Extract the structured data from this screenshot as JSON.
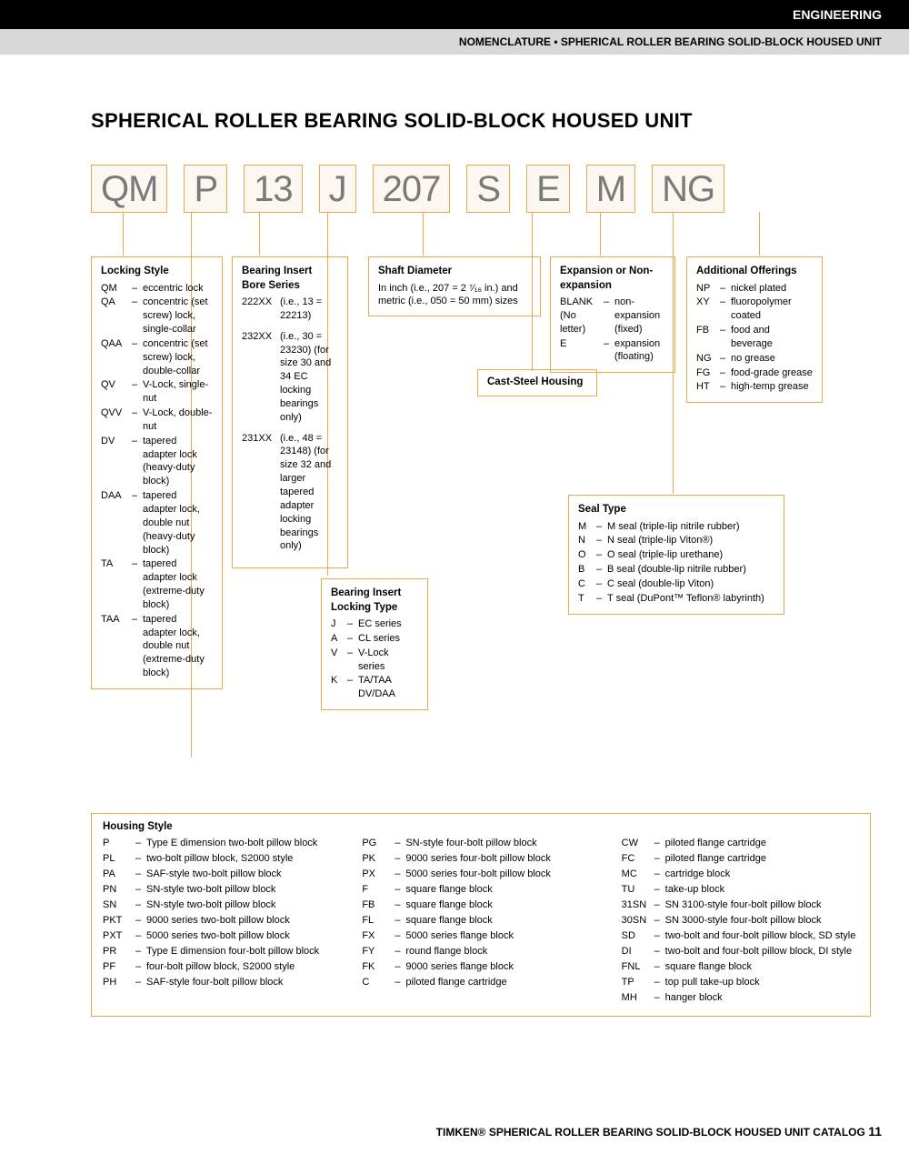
{
  "header": {
    "black": "ENGINEERING",
    "gray": "NOMENCLATURE • SPHERICAL ROLLER BEARING SOLID-BLOCK HOUSED UNIT"
  },
  "title": "SPHERICAL ROLLER BEARING SOLID-BLOCK HOUSED UNIT",
  "codes": [
    "QM",
    "P",
    "13",
    "J",
    "207",
    "S",
    "E",
    "M",
    "NG"
  ],
  "lockingStyle": {
    "title": "Locking Style",
    "items": [
      {
        "c": "QM",
        "d": "eccentric lock"
      },
      {
        "c": "QA",
        "d": "concentric (set screw) lock, single-collar"
      },
      {
        "c": "QAA",
        "d": "concentric (set screw) lock, double-collar"
      },
      {
        "c": "QV",
        "d": "V-Lock, single-nut"
      },
      {
        "c": "QVV",
        "d": "V-Lock, double-nut"
      },
      {
        "c": "DV",
        "d": "tapered adapter lock (heavy-duty block)"
      },
      {
        "c": "DAA",
        "d": "tapered adapter lock, double nut (heavy-duty block)"
      },
      {
        "c": "TA",
        "d": "tapered adapter lock (extreme-duty block)"
      },
      {
        "c": "TAA",
        "d": "tapered adapter lock, double nut (extreme-duty block)"
      }
    ]
  },
  "boreSeries": {
    "title": "Bearing Insert Bore Series",
    "items": [
      {
        "c": "222XX",
        "d": "(i.e., 13 = 22213)"
      },
      {
        "c": "232XX",
        "d": "(i.e., 30 = 23230) (for size 30 and 34 EC locking bearings only)"
      },
      {
        "c": "231XX",
        "d": "(i.e., 48 = 23148) (for size 32 and larger tapered adapter locking bearings only)"
      }
    ]
  },
  "shaftDiameter": {
    "title": "Shaft Diameter",
    "text": "In inch (i.e., 207 = 2 ⁷⁄₁₆ in.) and metric (i.e., 050 = 50 mm) sizes"
  },
  "castSteel": {
    "title": "Cast-Steel Housing"
  },
  "lockingType": {
    "title": "Bearing Insert Locking Type",
    "items": [
      {
        "c": "J",
        "d": "EC series"
      },
      {
        "c": "A",
        "d": "CL series"
      },
      {
        "c": "V",
        "d": "V-Lock series"
      },
      {
        "c": "K",
        "d": "TA/TAA DV/DAA"
      }
    ]
  },
  "expansion": {
    "title": "Expansion or Non-expansion",
    "items": [
      {
        "c": "BLANK (No letter)",
        "d": "non-expansion (fixed)"
      },
      {
        "c": "E",
        "d": "expansion (floating)"
      }
    ]
  },
  "sealType": {
    "title": "Seal Type",
    "items": [
      {
        "c": "M",
        "d": "M seal (triple-lip nitrile rubber)"
      },
      {
        "c": "N",
        "d": "N seal (triple-lip Viton®)"
      },
      {
        "c": "O",
        "d": "O seal (triple-lip urethane)"
      },
      {
        "c": "B",
        "d": "B seal (double-lip nitrile rubber)"
      },
      {
        "c": "C",
        "d": "C seal (double-lip Viton)"
      },
      {
        "c": "T",
        "d": "T seal (DuPont™ Teflon® labyrinth)"
      }
    ]
  },
  "additional": {
    "title": "Additional Offerings",
    "items": [
      {
        "c": "NP",
        "d": "nickel plated"
      },
      {
        "c": "XY",
        "d": "fluoropolymer coated"
      },
      {
        "c": "FB",
        "d": "food and beverage"
      },
      {
        "c": "NG",
        "d": "no grease"
      },
      {
        "c": "FG",
        "d": "food-grade grease"
      },
      {
        "c": "HT",
        "d": "high-temp grease"
      }
    ]
  },
  "housingStyle": {
    "title": "Housing Style",
    "col1": [
      {
        "c": "P",
        "d": "Type E dimension two-bolt pillow block"
      },
      {
        "c": "PL",
        "d": "two-bolt pillow block, S2000 style"
      },
      {
        "c": "PA",
        "d": "SAF-style two-bolt pillow block"
      },
      {
        "c": "PN",
        "d": "SN-style two-bolt pillow block"
      },
      {
        "c": "SN",
        "d": "SN-style two-bolt pillow block"
      },
      {
        "c": "PKT",
        "d": "9000 series two-bolt pillow block"
      },
      {
        "c": "PXT",
        "d": "5000 series two-bolt pillow block"
      },
      {
        "c": "PR",
        "d": "Type E dimension four-bolt pillow block"
      },
      {
        "c": "PF",
        "d": "four-bolt pillow block, S2000 style"
      },
      {
        "c": "PH",
        "d": "SAF-style four-bolt pillow block"
      }
    ],
    "col2": [
      {
        "c": "PG",
        "d": "SN-style four-bolt pillow block"
      },
      {
        "c": "PK",
        "d": "9000 series four-bolt pillow block"
      },
      {
        "c": "PX",
        "d": "5000 series four-bolt pillow block"
      },
      {
        "c": "F",
        "d": "square flange block"
      },
      {
        "c": "FB",
        "d": "square flange block"
      },
      {
        "c": "FL",
        "d": "square flange block"
      },
      {
        "c": "FX",
        "d": "5000 series flange block"
      },
      {
        "c": "FY",
        "d": "round flange block"
      },
      {
        "c": "FK",
        "d": "9000 series flange block"
      },
      {
        "c": "C",
        "d": "piloted flange cartridge"
      }
    ],
    "col3": [
      {
        "c": "CW",
        "d": "piloted flange cartridge"
      },
      {
        "c": "FC",
        "d": "piloted flange cartridge"
      },
      {
        "c": "MC",
        "d": "cartridge block"
      },
      {
        "c": "TU",
        "d": "take-up block"
      },
      {
        "c": "31SN",
        "d": "SN 3100-style four-bolt pillow block"
      },
      {
        "c": "30SN",
        "d": "SN 3000-style four-bolt pillow block"
      },
      {
        "c": "SD",
        "d": "two-bolt and four-bolt pillow block, SD style"
      },
      {
        "c": "DI",
        "d": "two-bolt and four-bolt pillow block, DI style"
      },
      {
        "c": "FNL",
        "d": "square flange block"
      },
      {
        "c": "TP",
        "d": "top pull take-up block"
      },
      {
        "c": "MH",
        "d": "hanger block"
      }
    ]
  },
  "footer": {
    "brand": "TIMKEN®",
    "text": "SPHERICAL ROLLER BEARING SOLID-BLOCK HOUSED UNIT CATALOG",
    "page": "11"
  }
}
